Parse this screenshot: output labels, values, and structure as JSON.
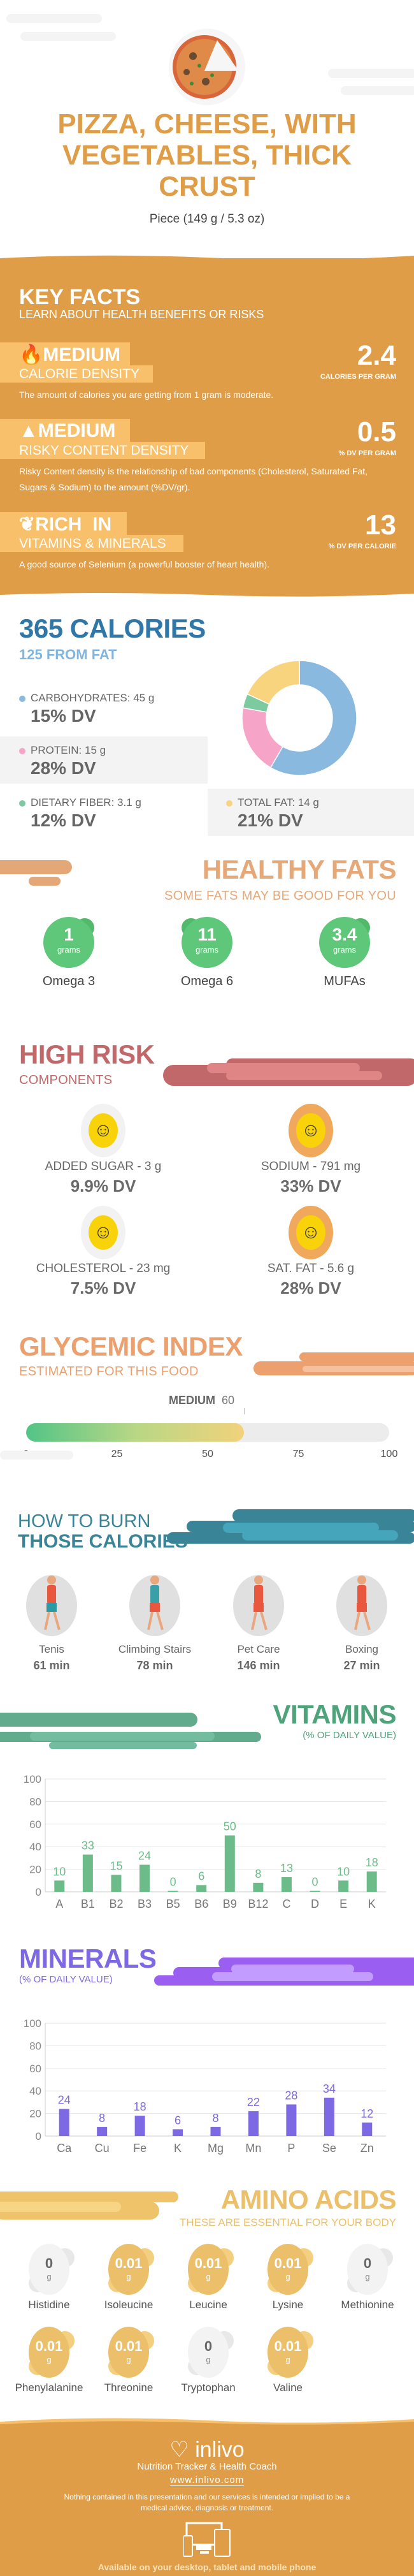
{
  "header": {
    "title_lines": [
      "PIZZA, CHEESE, WITH",
      "VEGETABLES, THICK",
      "CRUST"
    ],
    "serving": "Piece (149 g / 5.3 oz)"
  },
  "key_facts": {
    "title": "KEY FACTS",
    "subtitle": "LEARN ABOUT HEALTH BENEFITS OR RISKS",
    "items": [
      {
        "icon": "flame-icon",
        "level": "MEDIUM",
        "label": "CALORIE DENSITY",
        "value": "2.4",
        "unit": "CALORIES PER GRAM",
        "desc": "The amount of calories you are getting from 1 gram is moderate."
      },
      {
        "icon": "warning-icon",
        "level": "MEDIUM",
        "label": "RISKY CONTENT DENSITY",
        "value": "0.5",
        "unit": "% DV PER GRAM",
        "desc": "Risky Content density is the relationship of bad components (Cholesterol, Saturated Fat, Sugars & Sodium) to the amount (%DV/gr)."
      },
      {
        "icon": "leaf-icon",
        "level": "RICH  IN",
        "label": "VITAMINS & MINERALS",
        "value": "13",
        "unit": "% DV PER CALORIE",
        "desc": "A good source of Selenium (a powerful booster of heart health)."
      }
    ]
  },
  "calories": {
    "title": "365 CALORIES",
    "subtitle": "125 FROM FAT",
    "macros": [
      {
        "label": "CARBOHYDRATES: 45 g",
        "dv": "15% DV",
        "grams": 45,
        "color": "#8ab9e0"
      },
      {
        "label": "PROTEIN: 15 g",
        "dv": "28% DV",
        "grams": 15,
        "color": "#f6a4c8"
      },
      {
        "label": "DIETARY FIBER: 3.1 g",
        "dv": "12% DV",
        "grams": 3.1,
        "color": "#7ccaa0"
      },
      {
        "label": "TOTAL FAT: 14 g",
        "dv": "21% DV",
        "grams": 14,
        "color": "#f9d47e"
      }
    ]
  },
  "healthy_fats": {
    "title": "HEALTHY FATS",
    "subtitle": "SOME FATS MAY BE GOOD FOR YOU",
    "items": [
      {
        "value": "1",
        "unit": "grams",
        "label": "Omega 3"
      },
      {
        "value": "11",
        "unit": "grams",
        "label": "Omega 6"
      },
      {
        "value": "3.4",
        "unit": "grams",
        "label": "MUFAs"
      }
    ]
  },
  "high_risk": {
    "title": "HIGH RISK",
    "subtitle": "COMPONENTS",
    "items": [
      {
        "label": "ADDED SUGAR - 3 g",
        "dv": "9.9% DV",
        "level": "low"
      },
      {
        "label": "SODIUM - 791 mg",
        "dv": "33% DV",
        "level": "medium"
      },
      {
        "label": "CHOLESTEROL - 23 mg",
        "dv": "7.5% DV",
        "level": "low"
      },
      {
        "label": "SAT. FAT - 5.6 g",
        "dv": "28% DV",
        "level": "medium"
      }
    ]
  },
  "glycemic": {
    "title": "GLYCEMIC INDEX",
    "subtitle": "ESTIMATED FOR THIS FOOD",
    "level": "MEDIUM",
    "value": "60",
    "value_num": 60,
    "ticks": [
      "0",
      "25",
      "50",
      "75",
      "100"
    ]
  },
  "burn": {
    "title_light": "HOW TO BURN",
    "title_bold": "THOSE CALORIES",
    "items": [
      {
        "icon": "tennis-player-icon",
        "label": "Tenis",
        "value": "61 min"
      },
      {
        "icon": "climbing-stairs-icon",
        "label": "Climbing Stairs",
        "value": "78 min"
      },
      {
        "icon": "dog-walking-icon",
        "label": "Pet Care",
        "value": "146 min"
      },
      {
        "icon": "boxer-icon",
        "label": "Boxing",
        "value": "27 min"
      }
    ]
  },
  "chart_data": [
    {
      "type": "bar",
      "title": "VITAMINS",
      "subtitle": "(% OF DAILY VALUE)",
      "categories": [
        "A",
        "B1",
        "B2",
        "B3",
        "B5",
        "B6",
        "B9",
        "B12",
        "C",
        "D",
        "E",
        "K"
      ],
      "values": [
        10,
        33,
        15,
        24,
        0,
        6,
        50,
        8,
        13,
        0,
        10,
        18
      ],
      "ylim": [
        0,
        100
      ],
      "yticks": [
        "0",
        "20",
        "40",
        "60",
        "80",
        "100"
      ],
      "grid": true,
      "color": "#6cbc8a"
    },
    {
      "type": "bar",
      "title": "MINERALS",
      "subtitle": "(% OF DAILY VALUE)",
      "categories": [
        "Ca",
        "Cu",
        "Fe",
        "K",
        "Mg",
        "Mn",
        "P",
        "Se",
        "Zn"
      ],
      "values": [
        24,
        8,
        18,
        6,
        8,
        22,
        28,
        34,
        12
      ],
      "ylim": [
        0,
        100
      ],
      "yticks": [
        "0",
        "20",
        "40",
        "60",
        "80",
        "100"
      ],
      "grid": true,
      "color": "#7d69e3"
    }
  ],
  "amino": {
    "title": "AMINO ACIDS",
    "subtitle": "THESE ARE ESSENTIAL FOR YOUR BODY",
    "items": [
      {
        "value": "0",
        "unit": "g",
        "label": "Histidine"
      },
      {
        "value": "0.01",
        "unit": "g",
        "label": "Isoleucine"
      },
      {
        "value": "0.01",
        "unit": "g",
        "label": "Leucine"
      },
      {
        "value": "0.01",
        "unit": "g",
        "label": "Lysine"
      },
      {
        "value": "0",
        "unit": "g",
        "label": "Methionine"
      },
      {
        "value": "0.01",
        "unit": "g",
        "label": "Phenylalanine"
      },
      {
        "value": "0.01",
        "unit": "g",
        "label": "Threonine"
      },
      {
        "value": "0",
        "unit": "g",
        "label": "Tryptophan"
      },
      {
        "value": "0.01",
        "unit": "g",
        "label": "Valine"
      }
    ]
  },
  "footer": {
    "brand": "inlivo",
    "tagline": "Nutrition Tracker & Health Coach",
    "url": "www.inlivo.com",
    "disclaimer": "Nothing contained in this presentation and our services is intended or implied to be a medical advice, diagnosis or treatment.",
    "available": "Available on your desktop, tablet and mobile phone"
  },
  "colors": {
    "orange": "#e09d47",
    "blue": "#2e77a8",
    "light_blue": "#7fb6e0",
    "green": "#5ec779",
    "risk": "#c0686a",
    "glycemic": "#eba06e",
    "teal": "#3a8497",
    "vitamins": "#5aab82",
    "minerals": "#7d69e3",
    "amino": "#ecc06a"
  }
}
